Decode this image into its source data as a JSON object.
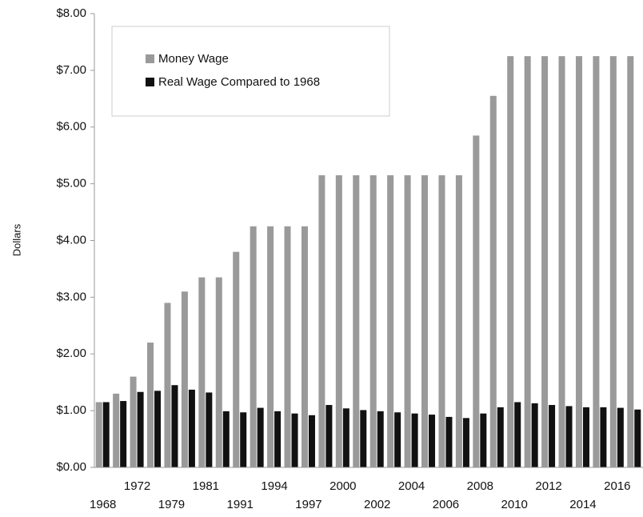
{
  "chart_data": {
    "type": "bar",
    "y_label": "Dollars",
    "categories": [
      "1968",
      null,
      "1972",
      null,
      "1979",
      null,
      "1981",
      null,
      "1991",
      null,
      "1994",
      null,
      "1997",
      null,
      "2000",
      null,
      "2002",
      null,
      "2004",
      null,
      "2006",
      null,
      "2008",
      null,
      "2010",
      null,
      "2012",
      null,
      "2014",
      null,
      "2016",
      null
    ],
    "series": [
      {
        "name": "Money Wage",
        "color": "#9a9a9a",
        "values": [
          1.15,
          1.3,
          1.6,
          2.2,
          2.9,
          3.1,
          3.35,
          3.35,
          3.8,
          4.25,
          4.25,
          4.25,
          4.25,
          5.15,
          5.15,
          5.15,
          5.15,
          5.15,
          5.15,
          5.15,
          5.15,
          5.15,
          5.85,
          6.55,
          7.25,
          7.25,
          7.25,
          7.25,
          7.25,
          7.25,
          7.25,
          7.25
        ]
      },
      {
        "name": "Real Wage Compared to 1968",
        "color": "#111111",
        "values": [
          1.15,
          1.17,
          1.33,
          1.35,
          1.45,
          1.37,
          1.32,
          0.99,
          0.97,
          1.05,
          0.99,
          0.95,
          0.92,
          1.1,
          1.04,
          1.01,
          0.99,
          0.97,
          0.95,
          0.93,
          0.89,
          0.87,
          0.95,
          1.06,
          1.15,
          1.13,
          1.1,
          1.08,
          1.06,
          1.06,
          1.05,
          1.02
        ]
      }
    ],
    "ylim": [
      0,
      8
    ],
    "yticks": [
      {
        "value": 0,
        "label": "$0.00"
      },
      {
        "value": 1,
        "label": "$1.00"
      },
      {
        "value": 2,
        "label": "$2.00"
      },
      {
        "value": 3,
        "label": "$3.00"
      },
      {
        "value": 4,
        "label": "$4.00"
      },
      {
        "value": 5,
        "label": "$5.00"
      },
      {
        "value": 6,
        "label": "$6.00"
      },
      {
        "value": 7,
        "label": "$7.00"
      },
      {
        "value": 8,
        "label": "$8.00"
      }
    ],
    "legend": "upper left"
  }
}
